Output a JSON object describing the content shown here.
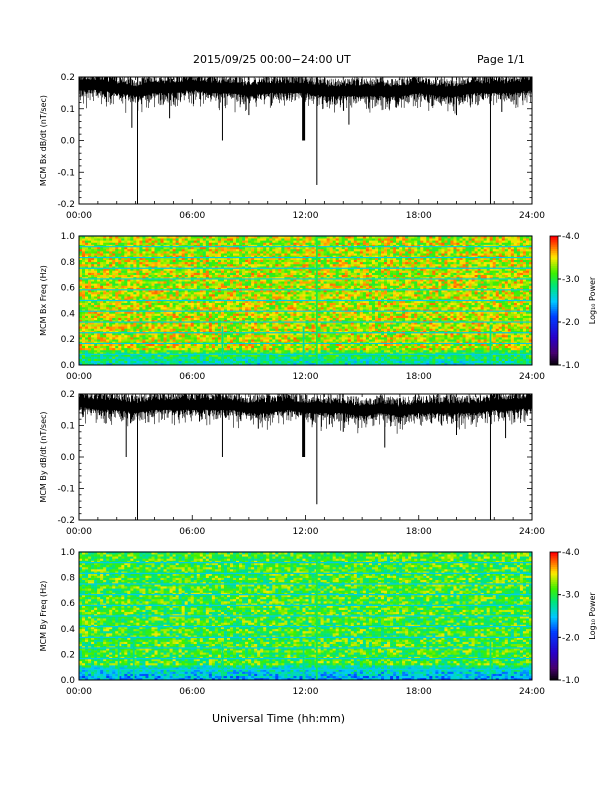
{
  "header": {
    "title": "2015/09/25  00:00−24:00 UT",
    "page": "Page 1/1"
  },
  "x_axis_label": "Universal Time (hh:mm)",
  "colorbar": {
    "label": "Log₁₀ Power",
    "ticks": [
      "-1.0",
      "-2.0",
      "-3.0",
      "-4.0"
    ],
    "tick_values": [
      -1,
      -2,
      -3,
      -4
    ]
  },
  "chart_data": [
    {
      "type": "line",
      "ylabel": "MCM Bx dB/dt (nT/sec)",
      "xlim": [
        0,
        24
      ],
      "ylim": [
        -0.2,
        0.2
      ],
      "x_ticks": [
        "00:00",
        "06:00",
        "12:00",
        "18:00",
        "24:00"
      ],
      "y_ticks": [
        "0.2",
        "0.1",
        "0.0",
        "-0.1",
        "-0.2"
      ],
      "y_tick_values": [
        0.2,
        0.1,
        0.0,
        -0.1,
        -0.2
      ],
      "series": [
        {
          "baseline_hours": [
            0,
            1,
            2,
            3,
            4,
            5,
            6,
            7,
            8,
            9,
            10,
            11,
            12,
            13,
            14,
            15,
            16,
            17,
            18,
            19,
            20,
            21,
            22,
            23,
            24
          ],
          "baseline_values": [
            0.17,
            0.17,
            0.16,
            0.15,
            0.16,
            0.16,
            0.17,
            0.16,
            0.16,
            0.15,
            0.16,
            0.16,
            0.16,
            0.15,
            0.15,
            0.15,
            0.15,
            0.15,
            0.16,
            0.15,
            0.15,
            0.16,
            0.16,
            0.16,
            0.17
          ],
          "spikes": [
            [
              3.1,
              -0.2
            ],
            [
              7.6,
              0.0
            ],
            [
              11.9,
              0.0
            ],
            [
              12.6,
              -0.14
            ],
            [
              21.8,
              -0.2
            ],
            [
              2.8,
              0.04
            ],
            [
              4.8,
              0.07
            ],
            [
              9.0,
              0.08
            ],
            [
              10.2,
              0.11
            ],
            [
              14.3,
              0.05
            ],
            [
              20.0,
              0.08
            ],
            [
              22.4,
              0.09
            ]
          ]
        }
      ]
    },
    {
      "type": "heatmap",
      "ylabel": "MCM Bx Freq (Hz)",
      "xlim": [
        0,
        24
      ],
      "ylim": [
        0,
        1.0
      ],
      "x_ticks": [
        "00:00",
        "06:00",
        "12:00",
        "18:00",
        "24:00"
      ],
      "y_ticks": [
        "1.0",
        "0.8",
        "0.6",
        "0.4",
        "0.2",
        "0.0"
      ],
      "y_tick_values": [
        1.0,
        0.8,
        0.6,
        0.4,
        0.2,
        0.0
      ],
      "z_range": [
        -4.0,
        -1.0
      ],
      "harmonic_lines_hz": [
        0.083,
        0.167,
        0.25,
        0.333,
        0.417,
        0.5,
        0.583,
        0.667,
        0.75,
        0.833,
        0.917,
        1.0
      ],
      "bright_columns_hours": [
        7.6,
        11.9,
        12.6,
        21.8
      ],
      "low_freq_power": -2.8,
      "background_power": -3.4
    },
    {
      "type": "line",
      "ylabel": "MCM By dB/dt (nT/sec)",
      "xlim": [
        0,
        24
      ],
      "ylim": [
        -0.2,
        0.2
      ],
      "x_ticks": [
        "00:00",
        "06:00",
        "12:00",
        "18:00",
        "24:00"
      ],
      "y_ticks": [
        "0.2",
        "0.1",
        "0.0",
        "-0.1",
        "-0.2"
      ],
      "y_tick_values": [
        0.2,
        0.1,
        0.0,
        -0.1,
        -0.2
      ],
      "series": [
        {
          "baseline_hours": [
            0,
            1,
            2,
            3,
            4,
            5,
            6,
            7,
            8,
            9,
            10,
            11,
            12,
            13,
            14,
            15,
            16,
            17,
            18,
            19,
            20,
            21,
            22,
            23,
            24
          ],
          "baseline_values": [
            0.17,
            0.16,
            0.16,
            0.15,
            0.16,
            0.16,
            0.16,
            0.16,
            0.16,
            0.15,
            0.15,
            0.16,
            0.15,
            0.15,
            0.15,
            0.14,
            0.15,
            0.14,
            0.15,
            0.15,
            0.15,
            0.15,
            0.16,
            0.16,
            0.17
          ],
          "spikes": [
            [
              3.1,
              -0.2
            ],
            [
              7.6,
              0.0
            ],
            [
              11.9,
              0.0
            ],
            [
              12.6,
              -0.15
            ],
            [
              21.8,
              -0.2
            ],
            [
              2.5,
              0.0
            ],
            [
              16.2,
              0.03
            ],
            [
              20.0,
              0.07
            ],
            [
              9.5,
              0.09
            ],
            [
              14.0,
              0.08
            ],
            [
              22.6,
              0.06
            ]
          ]
        }
      ]
    },
    {
      "type": "heatmap",
      "ylabel": "MCM By Freq (Hz)",
      "xlim": [
        0,
        24
      ],
      "ylim": [
        0,
        1.0
      ],
      "x_ticks": [
        "00:00",
        "06:00",
        "12:00",
        "18:00",
        "24:00"
      ],
      "y_ticks": [
        "1.0",
        "0.8",
        "0.6",
        "0.4",
        "0.2",
        "0.0"
      ],
      "y_tick_values": [
        1.0,
        0.8,
        0.6,
        0.4,
        0.2,
        0.0
      ],
      "z_range": [
        -4.0,
        -1.0
      ],
      "harmonic_lines_hz": [
        0.083,
        0.167,
        0.25,
        0.333,
        0.417,
        0.5,
        0.583,
        0.667,
        0.75,
        0.833,
        0.917,
        1.0
      ],
      "bright_columns_hours": [
        2.1,
        2.9,
        7.6,
        11.9,
        12.6,
        21.8
      ],
      "low_freq_power": -2.5,
      "background_power": -3.1
    }
  ]
}
